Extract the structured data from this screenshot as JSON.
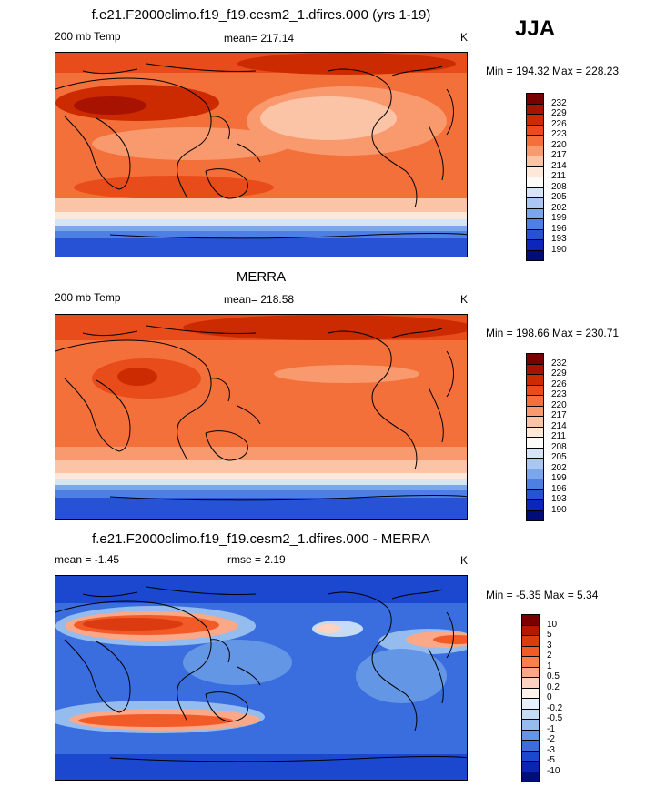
{
  "season": "JJA",
  "panels": [
    {
      "id": "model",
      "title": "f.e21.F2000climo.f19_f19.cesm2_1.dfires.000 (yrs 1-19)",
      "left_label": "200 mb Temp",
      "center_label": "mean= 217.14",
      "right_label": "K",
      "minmax": "Min = 194.32 Max = 228.23",
      "colorbar": {
        "labels": [
          "232",
          "229",
          "226",
          "223",
          "220",
          "217",
          "214",
          "211",
          "208",
          "205",
          "202",
          "199",
          "196",
          "193",
          "190"
        ],
        "colors": [
          "#7a0000",
          "#a81200",
          "#cc2a00",
          "#e84c1a",
          "#f4703a",
          "#f99a6e",
          "#fcc4a6",
          "#fde8da",
          "#fdfbf7",
          "#d5e4f7",
          "#a9c7f1",
          "#7ba6ec",
          "#4d7fe5",
          "#2752d6",
          "#0d25b8",
          "#000c7a"
        ]
      }
    },
    {
      "id": "obs",
      "title": "MERRA",
      "left_label": "200 mb Temp",
      "center_label": "mean= 218.58",
      "right_label": "K",
      "minmax": "Min = 198.66 Max = 230.71",
      "colorbar": {
        "labels": [
          "232",
          "229",
          "226",
          "223",
          "220",
          "217",
          "214",
          "211",
          "208",
          "205",
          "202",
          "199",
          "196",
          "193",
          "190"
        ],
        "colors": [
          "#7a0000",
          "#a81200",
          "#cc2a00",
          "#e84c1a",
          "#f4703a",
          "#f99a6e",
          "#fcc4a6",
          "#fde8da",
          "#fdfbf7",
          "#d5e4f7",
          "#a9c7f1",
          "#7ba6ec",
          "#4d7fe5",
          "#2752d6",
          "#0d25b8",
          "#000c7a"
        ]
      }
    },
    {
      "id": "diff",
      "title": "f.e21.F2000climo.f19_f19.cesm2_1.dfires.000 - MERRA",
      "left_label": "mean =  -1.45",
      "center_label": "rmse =   2.19",
      "right_label": "K",
      "minmax": "Min =  -5.35 Max =   5.34",
      "colorbar": {
        "labels": [
          "10",
          "5",
          "3",
          "2",
          "1",
          "0.5",
          "0.2",
          "0",
          "-0.2",
          "-0.5",
          "-1",
          "-2",
          "-3",
          "-5",
          "-10"
        ],
        "colors": [
          "#7a0000",
          "#b51800",
          "#dc3a10",
          "#f25a28",
          "#f88050",
          "#fba888",
          "#fdd2c0",
          "#fff3ea",
          "#e8f1fb",
          "#c4dcf5",
          "#94bcee",
          "#6496e6",
          "#3a6ede",
          "#1c48cf",
          "#0a26b0",
          "#000e7a"
        ]
      }
    }
  ]
}
